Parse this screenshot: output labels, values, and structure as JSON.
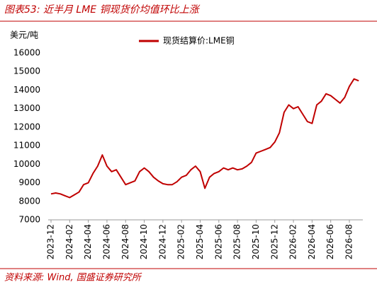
{
  "chart_data": {
    "type": "line",
    "title": "图表53:  近半月 LME 铜现货价均值环比上涨",
    "y_label": "美元/吨",
    "source": "资料来源: Wind, 国盛证券研究所",
    "categories": [
      "2023-12",
      null,
      null,
      null,
      "2024-02",
      null,
      null,
      null,
      "2024-04",
      null,
      null,
      null,
      "2024-06",
      null,
      null,
      null,
      "2024-08",
      null,
      null,
      null,
      "2024-10",
      null,
      null,
      null,
      "2024-12",
      null,
      null,
      null,
      "2025-02",
      null,
      null,
      null,
      "2025-04",
      null,
      null,
      null,
      "2025-06",
      null,
      null,
      null,
      "2025-08",
      null,
      null,
      null,
      "2025-10",
      null,
      null,
      null,
      "2025-12",
      null,
      null,
      null,
      "2026-02",
      null,
      null,
      null,
      "2026-04",
      null,
      null,
      null,
      "2026-06",
      null,
      null,
      null,
      "2026-08",
      null,
      null
    ],
    "series": [
      {
        "name": "现货结算价:LME铜",
        "color": "#c00000",
        "values": [
          8400,
          8450,
          8400,
          8300,
          8200,
          8350,
          8500,
          8900,
          9000,
          9500,
          9900,
          10500,
          9900,
          9600,
          9700,
          9300,
          8900,
          9000,
          9100,
          9600,
          9800,
          9600,
          9300,
          9100,
          8950,
          8900,
          8900,
          9050,
          9300,
          9400,
          9700,
          9900,
          9600,
          8700,
          9300,
          9500,
          9600,
          9800,
          9700,
          9800,
          9700,
          9750,
          9900,
          10100,
          10600,
          10700,
          10800,
          10900,
          11200,
          11700,
          12800,
          13200,
          13000,
          13100,
          12700,
          12300,
          12200,
          13200,
          13400,
          13800,
          13700,
          13500,
          13300,
          13600,
          14200,
          14600,
          14500
        ]
      }
    ],
    "ylim": [
      7000,
      16000
    ],
    "yticks": [
      7000,
      8000,
      9000,
      10000,
      11000,
      12000,
      13000,
      14000,
      15000,
      16000
    ],
    "grid": false,
    "legend": "top"
  }
}
